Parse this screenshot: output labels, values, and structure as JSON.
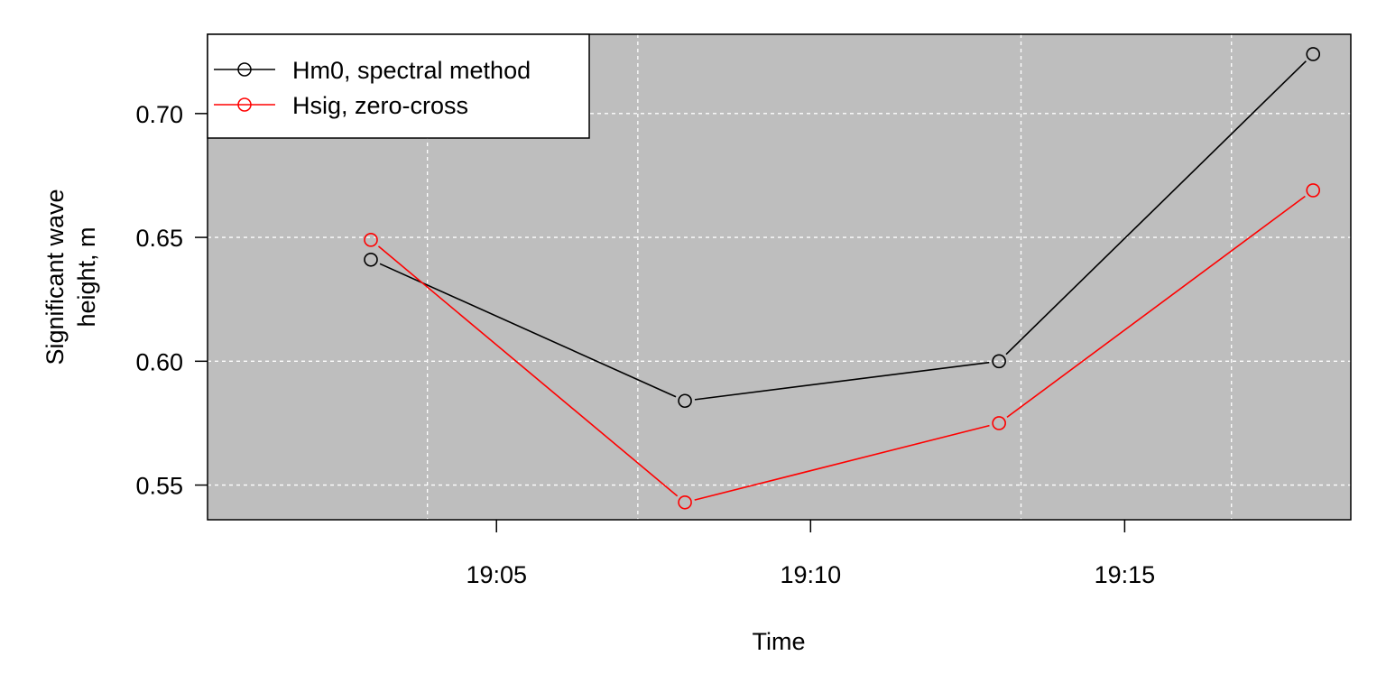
{
  "colors": {
    "background": "#ffffff",
    "panel": "#bebebe",
    "grid": "#ffffff",
    "series_hm0": "#000000",
    "series_hsig": "#ff0000"
  },
  "chart_data": {
    "type": "line",
    "title": "",
    "xlabel": "Time",
    "ylabel_line1": "Significant wave",
    "ylabel_line2": "height, m",
    "x": [
      "19:03",
      "19:08",
      "19:13",
      "19:18"
    ],
    "x_minutes": [
      3,
      8,
      13,
      18
    ],
    "xlim_minutes": [
      0.4,
      18.6
    ],
    "xticks": [
      {
        "minute": 5,
        "label": "19:05"
      },
      {
        "minute": 10,
        "label": "19:10"
      },
      {
        "minute": 15,
        "label": "19:15"
      }
    ],
    "x_grid_minutes": [
      3.9,
      7.25,
      13.35,
      16.7
    ],
    "ylim": [
      0.536,
      0.732
    ],
    "yticks": [
      {
        "value": 0.55,
        "label": "0.55"
      },
      {
        "value": 0.6,
        "label": "0.60"
      },
      {
        "value": 0.65,
        "label": "0.65"
      },
      {
        "value": 0.7,
        "label": "0.70"
      }
    ],
    "grid": true,
    "grid_style": "dashed",
    "legend_position": "top-left",
    "series": [
      {
        "name": "Hm0, spectral method",
        "color": "#000000",
        "values": [
          0.641,
          0.584,
          0.6,
          0.724
        ]
      },
      {
        "name": "Hsig, zero-cross",
        "color": "#ff0000",
        "values": [
          0.649,
          0.543,
          0.575,
          0.669
        ]
      }
    ]
  }
}
